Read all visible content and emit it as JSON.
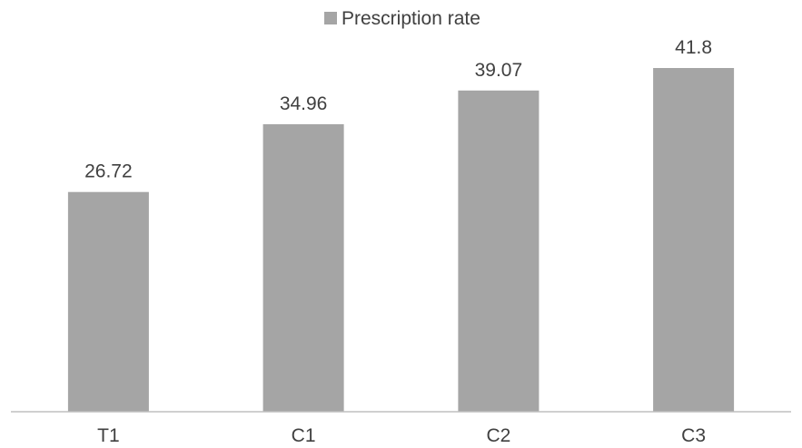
{
  "chart_data": {
    "type": "bar",
    "categories": [
      "T1",
      "C1",
      "C2",
      "C3"
    ],
    "series": [
      {
        "name": "Prescription rate",
        "values": [
          26.72,
          34.96,
          39.07,
          41.8
        ],
        "data_labels": [
          "26.72",
          "34.96",
          "39.07",
          "41.8"
        ]
      }
    ],
    "ylim": [
      0,
      45
    ],
    "grid": false,
    "legend_position": "top-center",
    "colors": {
      "bar": "#a5a5a5",
      "axis": "#bfbfbf",
      "text": "#404040"
    }
  }
}
